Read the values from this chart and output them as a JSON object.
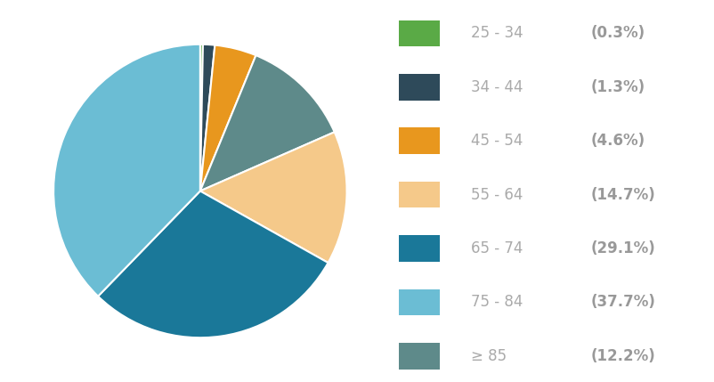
{
  "labels": [
    "25 - 34",
    "34 - 44",
    "45 - 54",
    "≥ 85",
    "55 - 64",
    "65 - 74",
    "75 - 84"
  ],
  "values": [
    0.3,
    1.3,
    4.6,
    12.2,
    14.7,
    29.1,
    37.7
  ],
  "colors": [
    "#5aaa46",
    "#2e4a5a",
    "#e8971e",
    "#5e8a8a",
    "#f5c98a",
    "#1a7899",
    "#6bbdd4"
  ],
  "legend_order_labels": [
    "25 - 34",
    "34 - 44",
    "45 - 54",
    "55 - 64",
    "65 - 74",
    "75 - 84",
    "≥ 85"
  ],
  "legend_order_pcts": [
    "0.3%",
    "1.3%",
    "4.6%",
    "14.7%",
    "29.1%",
    "37.7%",
    "12.2%"
  ],
  "legend_order_colors": [
    "#5aaa46",
    "#2e4a5a",
    "#e8971e",
    "#f5c98a",
    "#1a7899",
    "#6bbdd4",
    "#5e8a8a"
  ],
  "background_color": "#ffffff",
  "text_color": "#aaaaaa",
  "bold_color": "#999999",
  "startangle": 90,
  "counterclock": false
}
